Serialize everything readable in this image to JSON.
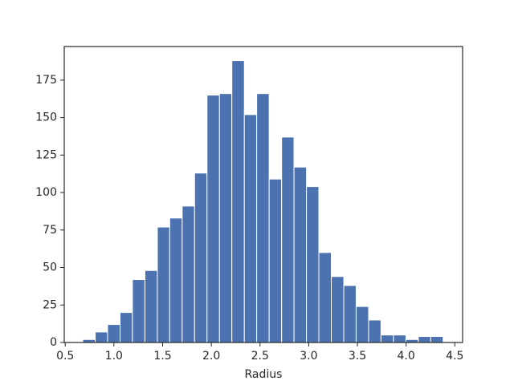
{
  "chart_data": {
    "type": "histogram",
    "x_label": "Radius",
    "bins": [
      0.68,
      0.808,
      0.935,
      1.063,
      1.19,
      1.318,
      1.446,
      1.573,
      1.701,
      1.828,
      1.956,
      2.084,
      2.211,
      2.339,
      2.466,
      2.594,
      2.722,
      2.849,
      2.977,
      3.104,
      3.232,
      3.36,
      3.487,
      3.615,
      3.742,
      3.87,
      3.998,
      4.125,
      4.253,
      4.38
    ],
    "values": [
      2,
      7,
      12,
      20,
      42,
      48,
      77,
      83,
      91,
      113,
      165,
      166,
      188,
      152,
      166,
      109,
      137,
      117,
      104,
      60,
      44,
      38,
      24,
      15,
      5,
      5,
      2,
      4,
      4
    ],
    "color": "#4c72b0",
    "xlim": [
      0.49,
      4.58
    ],
    "ylim": [
      0,
      197.4
    ],
    "xticks": [
      {
        "value": 0.5,
        "label": "0.5"
      },
      {
        "value": 1.0,
        "label": "1.0"
      },
      {
        "value": 1.5,
        "label": "1.5"
      },
      {
        "value": 2.0,
        "label": "2.0"
      },
      {
        "value": 2.5,
        "label": "2.5"
      },
      {
        "value": 3.0,
        "label": "3.0"
      },
      {
        "value": 3.5,
        "label": "3.5"
      },
      {
        "value": 4.0,
        "label": "4.0"
      },
      {
        "value": 4.5,
        "label": "4.5"
      }
    ],
    "yticks": [
      0,
      25,
      50,
      75,
      100,
      125,
      150,
      175
    ]
  }
}
